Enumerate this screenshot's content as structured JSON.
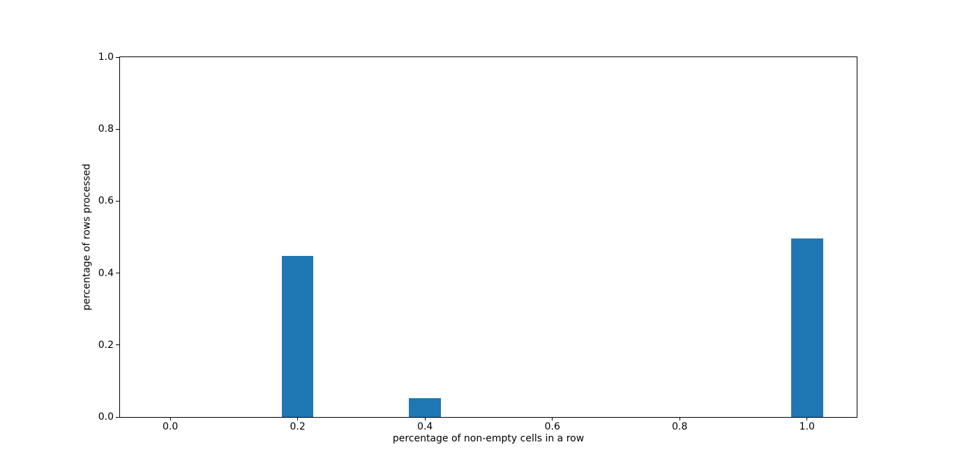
{
  "figure": {
    "background": "#ffffff",
    "bar_color": "#1f77b4",
    "axis_color": "#000000"
  },
  "chart_data": {
    "type": "bar",
    "title": "",
    "xlabel": "percentage of non-empty cells in a row",
    "ylabel": "percentage of rows processed",
    "x": [
      0.2,
      0.4,
      1.0
    ],
    "values": [
      0.448,
      0.052,
      0.497
    ],
    "bar_width": 0.05,
    "xlim": [
      -0.079,
      1.078
    ],
    "ylim": [
      0,
      1.0
    ],
    "x_tick_values": [
      0.0,
      0.2,
      0.4,
      0.6,
      0.8,
      1.0
    ],
    "x_ticks": [
      "0.0",
      "0.2",
      "0.4",
      "0.6",
      "0.8",
      "1.0"
    ],
    "y_tick_values": [
      0.0,
      0.2,
      0.4,
      0.6,
      0.8,
      1.0
    ],
    "y_ticks": [
      "0.0",
      "0.2",
      "0.4",
      "0.6",
      "0.8",
      "1.0"
    ],
    "grid": false,
    "legend": null
  }
}
